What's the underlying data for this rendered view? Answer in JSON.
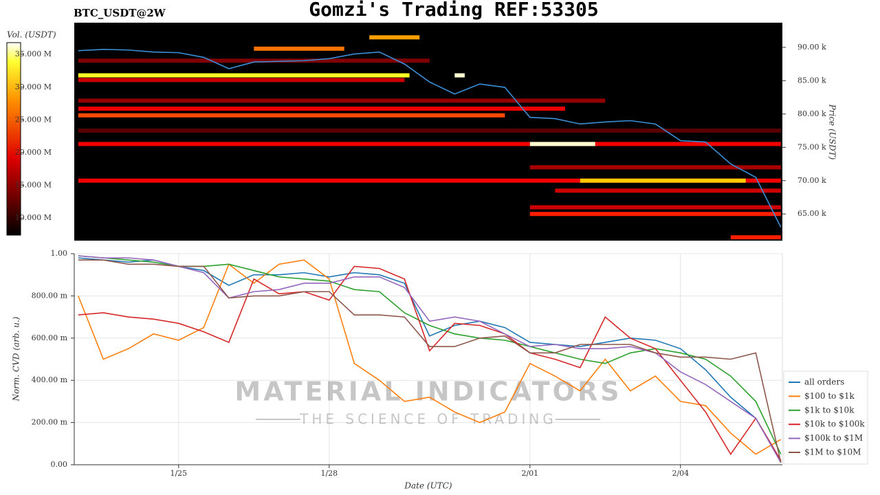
{
  "chart_data": [
    {
      "type": "heatmap",
      "title": "Gomzi's Trading REF:53305",
      "subtitle": "BTC_USDT@2W",
      "ylabel": "Price (USDT)",
      "x": [
        -2,
        -1.5,
        -1,
        -0.5,
        0,
        0.5,
        1,
        1.5,
        2,
        2.5,
        3,
        3.5,
        4,
        4.5,
        5,
        5.5,
        6,
        6.5,
        7,
        7.5,
        8,
        8.5,
        9,
        9.5,
        10,
        10.5,
        11,
        11.5,
        12
      ],
      "xlim": [
        -2.08,
        12.03
      ],
      "ylim": [
        61,
        93.7
      ],
      "yticks": [
        {
          "value": 65,
          "label": "65.00 k"
        },
        {
          "value": 70,
          "label": "70.00 k"
        },
        {
          "value": 75,
          "label": "75.00 k"
        },
        {
          "value": 80,
          "label": "80.00 k"
        },
        {
          "value": 85,
          "label": "85.00 k"
        },
        {
          "value": 90,
          "label": "90.00 k"
        }
      ],
      "price": {
        "color": "#3a8fd6",
        "values": [
          89.5,
          89.7,
          89.6,
          89.3,
          89.2,
          88.5,
          86.8,
          87.8,
          87.9,
          88.0,
          88.3,
          89.0,
          89.3,
          87.5,
          84.8,
          83.0,
          84.5,
          84.0,
          79.5,
          79.3,
          78.5,
          78.8,
          79.0,
          78.5,
          76.0,
          75.8,
          72.5,
          70.5,
          63.0
        ]
      },
      "colorbar": {
        "label": "Vol. (USDT)",
        "lim": [
          7.4,
          36.8
        ],
        "ticks": [
          {
            "value": 10,
            "label": "10.000 M"
          },
          {
            "value": 15,
            "label": "15.000 M"
          },
          {
            "value": 20,
            "label": "20.000 M"
          },
          {
            "value": 25,
            "label": "25.000 M"
          },
          {
            "value": 30,
            "label": "30.000 M"
          },
          {
            "value": 35,
            "label": "35.000 M"
          }
        ]
      },
      "levels": [
        {
          "price": 88.0,
          "from": -2,
          "to": 5,
          "volume": 14
        },
        {
          "price": 85.1,
          "from": -2,
          "to": 4.5,
          "volume": 18
        },
        {
          "price": 85.8,
          "from": -2,
          "to": 4.6,
          "volume": 33
        },
        {
          "price": 89.8,
          "from": 1.5,
          "to": 3.3,
          "volume": 26
        },
        {
          "price": 91.5,
          "from": 3.8,
          "to": 4.8,
          "volume": 28
        },
        {
          "price": 85.8,
          "from": 5.5,
          "to": 5.7,
          "volume": 36
        },
        {
          "price": 82.0,
          "from": -2,
          "to": 8.5,
          "volume": 15
        },
        {
          "price": 80.8,
          "from": -2,
          "to": 7.7,
          "volume": 20
        },
        {
          "price": 79.8,
          "from": -2,
          "to": 6.5,
          "volume": 24
        },
        {
          "price": 77.5,
          "from": -2,
          "to": 12,
          "volume": 12
        },
        {
          "price": 75.5,
          "from": -2,
          "to": 12,
          "volume": 20
        },
        {
          "price": 75.5,
          "from": 7.0,
          "to": 8.3,
          "volume": 36
        },
        {
          "price": 72.0,
          "from": 7,
          "to": 12,
          "volume": 16
        },
        {
          "price": 70.0,
          "from": -2,
          "to": 12,
          "volume": 20
        },
        {
          "price": 70.0,
          "from": 8.0,
          "to": 11.3,
          "volume": 30
        },
        {
          "price": 68.5,
          "from": 7.5,
          "to": 12,
          "volume": 18
        },
        {
          "price": 66.0,
          "from": 7,
          "to": 12,
          "volume": 18
        },
        {
          "price": 65.0,
          "from": 7,
          "to": 12,
          "volume": 22
        },
        {
          "price": 61.5,
          "from": 11,
          "to": 12,
          "volume": 22
        }
      ]
    },
    {
      "type": "line",
      "xlabel": "Date (UTC)",
      "ylabel": "Norm. CVD (arb. u.)",
      "x": [
        -2,
        -1.5,
        -1,
        -0.5,
        0,
        0.5,
        1,
        1.5,
        2,
        2.5,
        3,
        3.5,
        4,
        4.5,
        5,
        5.5,
        6,
        6.5,
        7,
        7.5,
        8,
        8.5,
        9,
        9.5,
        10,
        10.5,
        11,
        11.5,
        12
      ],
      "xlim": [
        -2.08,
        12.03
      ],
      "xticks": [
        {
          "value": 0,
          "label": "1/25"
        },
        {
          "value": 3,
          "label": "1/28"
        },
        {
          "value": 7,
          "label": "2/01"
        },
        {
          "value": 10,
          "label": "2/04"
        }
      ],
      "ylim": [
        0,
        1
      ],
      "yticks": [
        {
          "value": 0,
          "label": "0.00"
        },
        {
          "value": 0.2,
          "label": "200.00 m"
        },
        {
          "value": 0.4,
          "label": "400.00 m"
        },
        {
          "value": 0.6,
          "label": "600.00 m"
        },
        {
          "value": 0.8,
          "label": "800.00 m"
        },
        {
          "value": 1,
          "label": "1.00"
        }
      ],
      "grid": true,
      "legend": "lower right",
      "watermark": {
        "title": "MATERIAL INDICATORS",
        "subtitle": "THE SCIENCE OF TRADING"
      },
      "series": [
        {
          "name": "all orders",
          "color": "#1f77b4",
          "values": [
            0.98,
            0.97,
            0.96,
            0.97,
            0.94,
            0.92,
            0.85,
            0.9,
            0.9,
            0.91,
            0.89,
            0.91,
            0.9,
            0.86,
            0.61,
            0.66,
            0.68,
            0.65,
            0.58,
            0.57,
            0.56,
            0.58,
            0.6,
            0.59,
            0.55,
            0.45,
            0.32,
            0.22,
            0.02
          ]
        },
        {
          "name": "$100 to $1k",
          "color": "#ff7f0e",
          "values": [
            0.8,
            0.5,
            0.55,
            0.62,
            0.59,
            0.65,
            0.95,
            0.86,
            0.95,
            0.97,
            0.88,
            0.48,
            0.4,
            0.3,
            0.32,
            0.25,
            0.2,
            0.25,
            0.48,
            0.42,
            0.35,
            0.5,
            0.35,
            0.42,
            0.3,
            0.28,
            0.15,
            0.05,
            0.12
          ]
        },
        {
          "name": "$1k to $10k",
          "color": "#2ca02c",
          "values": [
            0.99,
            0.98,
            0.97,
            0.96,
            0.94,
            0.94,
            0.95,
            0.92,
            0.89,
            0.88,
            0.87,
            0.83,
            0.82,
            0.72,
            0.66,
            0.62,
            0.6,
            0.59,
            0.56,
            0.53,
            0.5,
            0.48,
            0.53,
            0.55,
            0.53,
            0.5,
            0.42,
            0.3,
            0.05
          ]
        },
        {
          "name": "$10k to $100k",
          "color": "#d62728",
          "values": [
            0.71,
            0.72,
            0.7,
            0.69,
            0.67,
            0.63,
            0.58,
            0.88,
            0.81,
            0.82,
            0.78,
            0.94,
            0.93,
            0.88,
            0.54,
            0.67,
            0.66,
            0.62,
            0.53,
            0.5,
            0.46,
            0.7,
            0.6,
            0.55,
            0.4,
            0.25,
            0.05,
            0.22,
            0.02
          ]
        },
        {
          "name": "$100k to $1M",
          "color": "#9467bd",
          "values": [
            0.99,
            0.98,
            0.98,
            0.97,
            0.94,
            0.91,
            0.79,
            0.82,
            0.83,
            0.86,
            0.86,
            0.89,
            0.89,
            0.84,
            0.68,
            0.7,
            0.68,
            0.62,
            0.56,
            0.57,
            0.55,
            0.55,
            0.56,
            0.53,
            0.44,
            0.38,
            0.3,
            0.22,
            0.01
          ]
        },
        {
          "name": "$1M to $10M",
          "color": "#8c564b",
          "values": [
            0.97,
            0.97,
            0.95,
            0.95,
            0.94,
            0.94,
            0.79,
            0.8,
            0.8,
            0.82,
            0.82,
            0.71,
            0.71,
            0.7,
            0.56,
            0.56,
            0.6,
            0.61,
            0.53,
            0.53,
            0.57,
            0.57,
            0.57,
            0.53,
            0.51,
            0.51,
            0.5,
            0.53,
            0.01
          ]
        }
      ]
    }
  ]
}
